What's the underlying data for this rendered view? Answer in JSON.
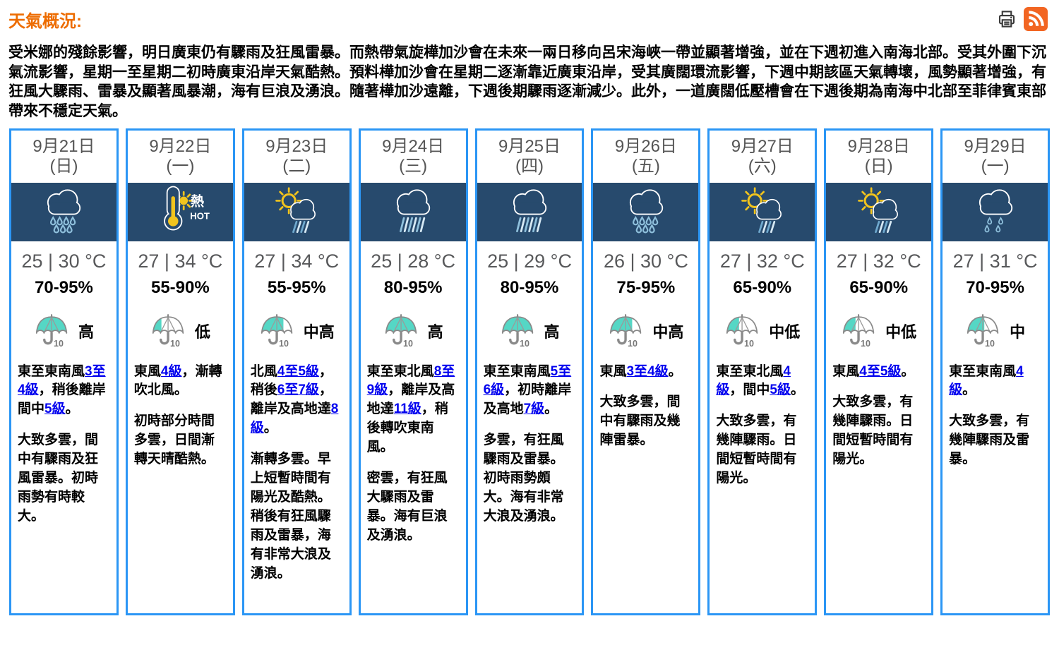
{
  "header": {
    "title": "天氣概況:"
  },
  "summary": "受米娜的殘餘影響，明日廣東仍有驟雨及狂風雷暴。而熱帶氣旋樺加沙會在未來一兩日移向呂宋海峽一帶並顯著增強，並在下週初進入南海北部。受其外圍下沉氣流影響，星期一至星期二初時廣東沿岸天氣酷熱。預料樺加沙會在星期二逐漸靠近廣東沿岸，受其廣闊環流影響，下週中期該區天氣轉壞，風勢顯著增強，有狂風大驟雨、雷暴及顯著風暴潮，海有巨浪及湧浪。隨著樺加沙遠離，下週後期驟雨逐漸減少。此外，一道廣闊低壓槽會在下週後期為南海中北部至菲律賓東部帶來不穩定天氣。",
  "icons": {
    "hot_label": "熱",
    "hot_sub": "HOT",
    "psr_unit": "10"
  },
  "colors": {
    "accent_orange": "#ED6C00",
    "card_border": "#2B96F5",
    "banner_navy": "#274A6D",
    "umbrella_teal": "#55D7C5",
    "link_blue": "#0000EE",
    "rain_blue": "#8FC0DC",
    "rain_blue_dark": "#6FA9CE",
    "rain_pale": "#D7E9F4",
    "sun_yellow": "#F2C41D",
    "rss_orange": "#F26522"
  },
  "psr_fill": {
    "高": 1,
    "中高": 0.72,
    "中": 0.55,
    "中低": 0.4,
    "低": 0.28
  },
  "forecast_days": [
    {
      "date": "9月21日",
      "weekday": "(日)",
      "icon": "rain-cloud",
      "temp": "25 | 30 °C",
      "humidity": "70-95%",
      "psr": "高",
      "wind": [
        {
          "text": "東至東南風"
        },
        {
          "text": "3至4級",
          "link": true
        },
        {
          "text": "，稍後離岸間中"
        },
        {
          "text": "5級",
          "link": true
        },
        {
          "text": "。"
        }
      ],
      "description": "大致多雲，間中有驟雨及狂風雷暴。初時雨勢有時較大。"
    },
    {
      "date": "9月22日",
      "weekday": "(一)",
      "icon": "hot",
      "temp": "27 | 34 °C",
      "humidity": "55-90%",
      "psr": "低",
      "wind": [
        {
          "text": "東風"
        },
        {
          "text": "4級",
          "link": true
        },
        {
          "text": "，漸轉吹北風。"
        }
      ],
      "description": "初時部分時間多雲，日間漸轉天晴酷熱。"
    },
    {
      "date": "9月23日",
      "weekday": "(二)",
      "icon": "sun-shower",
      "temp": "27 | 34 °C",
      "humidity": "55-95%",
      "psr": "中高",
      "wind": [
        {
          "text": "北風"
        },
        {
          "text": "4至5級",
          "link": true
        },
        {
          "text": "，稍後"
        },
        {
          "text": "6至7級",
          "link": true
        },
        {
          "text": "，離岸及高地達"
        },
        {
          "text": "8級",
          "link": true
        },
        {
          "text": "。"
        }
      ],
      "description": "漸轉多雲。早上短暫時間有陽光及酷熱。稍後有狂風驟雨及雷暴，海有非常大浪及湧浪。"
    },
    {
      "date": "9月24日",
      "weekday": "(三)",
      "icon": "heavy-rain",
      "temp": "25 | 28 °C",
      "humidity": "80-95%",
      "psr": "高",
      "wind": [
        {
          "text": "東至東北風"
        },
        {
          "text": "8至9級",
          "link": true
        },
        {
          "text": "，離岸及高地達"
        },
        {
          "text": "11級",
          "link": true
        },
        {
          "text": "，稍後轉吹東南風。"
        }
      ],
      "description": "密雲，有狂風大驟雨及雷暴。海有巨浪及湧浪。"
    },
    {
      "date": "9月25日",
      "weekday": "(四)",
      "icon": "heavy-rain",
      "temp": "25 | 29 °C",
      "humidity": "80-95%",
      "psr": "高",
      "wind": [
        {
          "text": "東至東南風"
        },
        {
          "text": "5至6級",
          "link": true
        },
        {
          "text": "，初時離岸及高地"
        },
        {
          "text": "7級",
          "link": true
        },
        {
          "text": "。"
        }
      ],
      "description": "多雲，有狂風驟雨及雷暴。初時雨勢頗大。海有非常大浪及湧浪。"
    },
    {
      "date": "9月26日",
      "weekday": "(五)",
      "icon": "rain-cloud",
      "temp": "26 | 30 °C",
      "humidity": "75-95%",
      "psr": "中高",
      "wind": [
        {
          "text": "東風"
        },
        {
          "text": "3至4級",
          "link": true
        },
        {
          "text": "。"
        }
      ],
      "description": "大致多雲，間中有驟雨及幾陣雷暴。"
    },
    {
      "date": "9月27日",
      "weekday": "(六)",
      "icon": "sun-shower",
      "temp": "27 | 32 °C",
      "humidity": "65-90%",
      "psr": "中低",
      "wind": [
        {
          "text": "東至東北風"
        },
        {
          "text": "4級",
          "link": true
        },
        {
          "text": "，間中"
        },
        {
          "text": "5級",
          "link": true
        },
        {
          "text": "。"
        }
      ],
      "description": "大致多雲，有幾陣驟雨。日間短暫時間有陽光。"
    },
    {
      "date": "9月28日",
      "weekday": "(日)",
      "icon": "sun-shower",
      "temp": "27 | 32 °C",
      "humidity": "65-90%",
      "psr": "中低",
      "wind": [
        {
          "text": "東風"
        },
        {
          "text": "4至5級",
          "link": true
        },
        {
          "text": "。"
        }
      ],
      "description": "大致多雲，有幾陣驟雨。日間短暫時間有陽光。"
    },
    {
      "date": "9月29日",
      "weekday": "(一)",
      "icon": "light-rain",
      "temp": "27 | 31 °C",
      "humidity": "70-95%",
      "psr": "中",
      "wind": [
        {
          "text": "東至東南風"
        },
        {
          "text": "4級",
          "link": true
        },
        {
          "text": "。"
        }
      ],
      "description": "大致多雲，有幾陣驟雨及雷暴。"
    }
  ]
}
